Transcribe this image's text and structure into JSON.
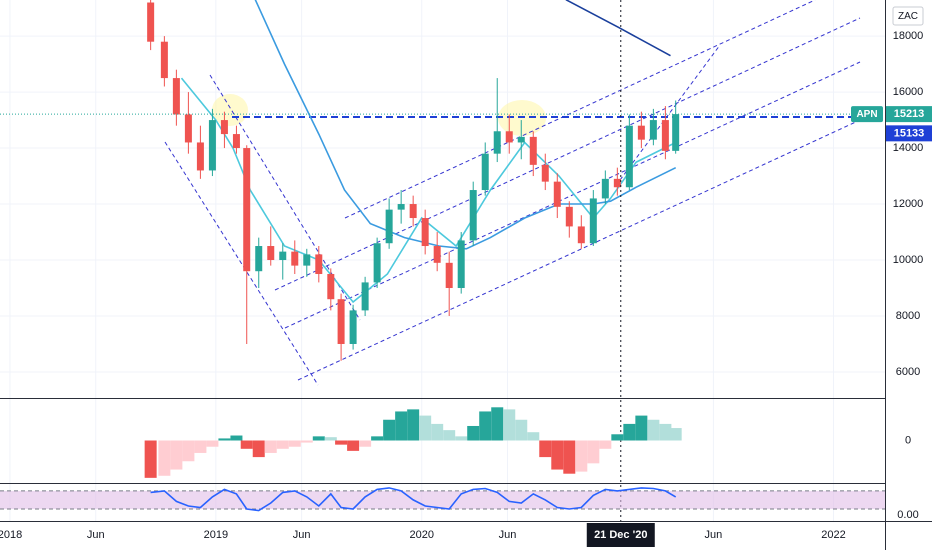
{
  "chart_data": [
    {
      "type": "candlestick",
      "currency": "ZAC",
      "symbol": "APN",
      "x": [
        8.2,
        9.0,
        9.7,
        10.4,
        11.1,
        11.8,
        12.5,
        13.2,
        13.8,
        14.5,
        15.2,
        15.9,
        16.6,
        17.3,
        18.0,
        18.7,
        19.3,
        20.0,
        20.7,
        21.4,
        22.1,
        22.8,
        23.5,
        24.2,
        24.9,
        25.6,
        26.3,
        27.0,
        27.7,
        28.4,
        29.1,
        29.8,
        30.5,
        31.2,
        31.9,
        32.6,
        33.3,
        34.0,
        34.7,
        35.4,
        36.1,
        36.8,
        37.5,
        38.2,
        38.8
      ],
      "open": [
        19200,
        17800,
        16500,
        15200,
        14200,
        13200,
        15000,
        14500,
        14000,
        9600,
        10500,
        10000,
        10300,
        9800,
        10200,
        9500,
        8600,
        7000,
        8200,
        9200,
        10600,
        11800,
        12000,
        11500,
        10500,
        9900,
        9000,
        10700,
        12500,
        13800,
        14600,
        14200,
        14400,
        13400,
        12800,
        11900,
        11200,
        10600,
        12200,
        12900,
        12600,
        14800,
        14300,
        15000,
        13900
      ],
      "high": [
        19300,
        18000,
        16800,
        16000,
        14800,
        15400,
        15300,
        14800,
        14100,
        10800,
        11200,
        10600,
        10700,
        10400,
        10500,
        9700,
        8800,
        8400,
        9400,
        10800,
        12200,
        12500,
        12300,
        11800,
        11000,
        10300,
        11000,
        12800,
        14200,
        16500,
        15200,
        15000,
        14600,
        13800,
        13100,
        12100,
        11600,
        12500,
        13200,
        13300,
        15200,
        15300,
        15400,
        15500,
        15700
      ],
      "low": [
        17500,
        16200,
        14800,
        13800,
        12900,
        13000,
        14000,
        13800,
        7000,
        9000,
        9800,
        9300,
        9500,
        9400,
        9200,
        8200,
        6400,
        6800,
        8000,
        9000,
        10400,
        11300,
        11200,
        10200,
        9600,
        8000,
        8800,
        10500,
        12300,
        13500,
        13800,
        13600,
        13000,
        12500,
        11500,
        10800,
        10400,
        10500,
        12000,
        12300,
        12500,
        14000,
        14100,
        13600,
        13800
      ],
      "close": [
        17800,
        16500,
        15200,
        14200,
        13200,
        15000,
        14500,
        14000,
        9600,
        10500,
        10000,
        10300,
        9800,
        10200,
        9500,
        8600,
        7000,
        8200,
        9200,
        10600,
        11800,
        12000,
        11500,
        10500,
        9900,
        9000,
        10700,
        12500,
        13800,
        14600,
        14200,
        14400,
        13400,
        12800,
        11900,
        11200,
        10600,
        12200,
        12900,
        12600,
        14800,
        14300,
        15000,
        13900,
        15213
      ],
      "up_color": "#26a69a",
      "down_color": "#ef5350",
      "lines": [
        {
          "color": "#4dc9dd",
          "x": [
            10,
            12,
            13,
            14,
            16,
            18,
            20,
            22,
            24,
            26,
            28,
            30,
            32,
            34,
            35,
            36.5,
            38.8
          ],
          "values": [
            16500,
            15000,
            14000,
            12500,
            10500,
            10000,
            8500,
            9500,
            11500,
            10500,
            12500,
            14200,
            13000,
            11500,
            12200,
            13500,
            14200
          ]
        },
        {
          "color": "#3b9be0",
          "x": [
            14.3,
            16,
            18,
            19.5,
            21,
            23,
            25,
            26.6,
            28,
            30,
            32,
            34,
            35,
            36.5,
            38.8
          ],
          "values": [
            19300,
            17000,
            14500,
            12500,
            11300,
            10800,
            10500,
            10400,
            10800,
            11500,
            12000,
            12000,
            12100,
            12600,
            13300
          ]
        },
        {
          "color": "#1a3f9c",
          "x": [
            32.4,
            35.5,
            38.5
          ],
          "values": [
            19300,
            18300,
            17300
          ]
        }
      ],
      "last_price": 15213,
      "last_price_color": "#26a69a",
      "close_marker": 15133,
      "close_marker_color": "#1e40d6",
      "crosshair": {
        "x": 35.6,
        "label": "21 Dec '20"
      },
      "xlim": [
        -0.58,
        51.0
      ],
      "ylim": [
        5070,
        19290
      ],
      "yticks": [
        6000,
        8000,
        10000,
        12000,
        14000,
        16000,
        18000
      ],
      "xticks": [
        {
          "value": 0,
          "label": "2018"
        },
        {
          "value": 5,
          "label": "Jun"
        },
        {
          "value": 12,
          "label": "2019"
        },
        {
          "value": 17,
          "label": "Jun"
        },
        {
          "value": 24,
          "label": "2020"
        },
        {
          "value": 29,
          "label": "Jun"
        },
        {
          "value": 41,
          "label": "Jun"
        },
        {
          "value": 48,
          "label": "2022"
        }
      ],
      "grid": true
    },
    {
      "type": "histogram",
      "values": [
        -900,
        -850,
        -700,
        -500,
        -300,
        -150,
        50,
        120,
        -200,
        -400,
        -300,
        -200,
        -150,
        -50,
        100,
        80,
        -100,
        -250,
        -150,
        100,
        500,
        700,
        750,
        600,
        400,
        250,
        100,
        350,
        700,
        800,
        750,
        500,
        200,
        -400,
        -700,
        -800,
        -750,
        -550,
        -200,
        150,
        400,
        600,
        500,
        400,
        300
      ],
      "colors": {
        "up_rising": "#26a69a",
        "up_falling": "#b2dfdb",
        "down_falling": "#ef5350",
        "down_rising": "#ffcdd2"
      },
      "ylim": [
        -1000,
        1000
      ],
      "yticks": [
        0
      ]
    },
    {
      "type": "line",
      "values": [
        75,
        80,
        45,
        30,
        25,
        60,
        85,
        70,
        20,
        15,
        40,
        75,
        80,
        60,
        30,
        70,
        25,
        20,
        60,
        85,
        90,
        80,
        50,
        30,
        25,
        20,
        70,
        85,
        88,
        75,
        45,
        40,
        70,
        50,
        25,
        20,
        25,
        65,
        85,
        80,
        85,
        90,
        88,
        80,
        60
      ],
      "color": "#2962ff",
      "band": [
        20,
        80
      ],
      "band_color": "#e1bee7",
      "ylim": [
        -20,
        103
      ],
      "yticks": [
        {
          "value": 0,
          "label": "0.00"
        }
      ]
    }
  ]
}
